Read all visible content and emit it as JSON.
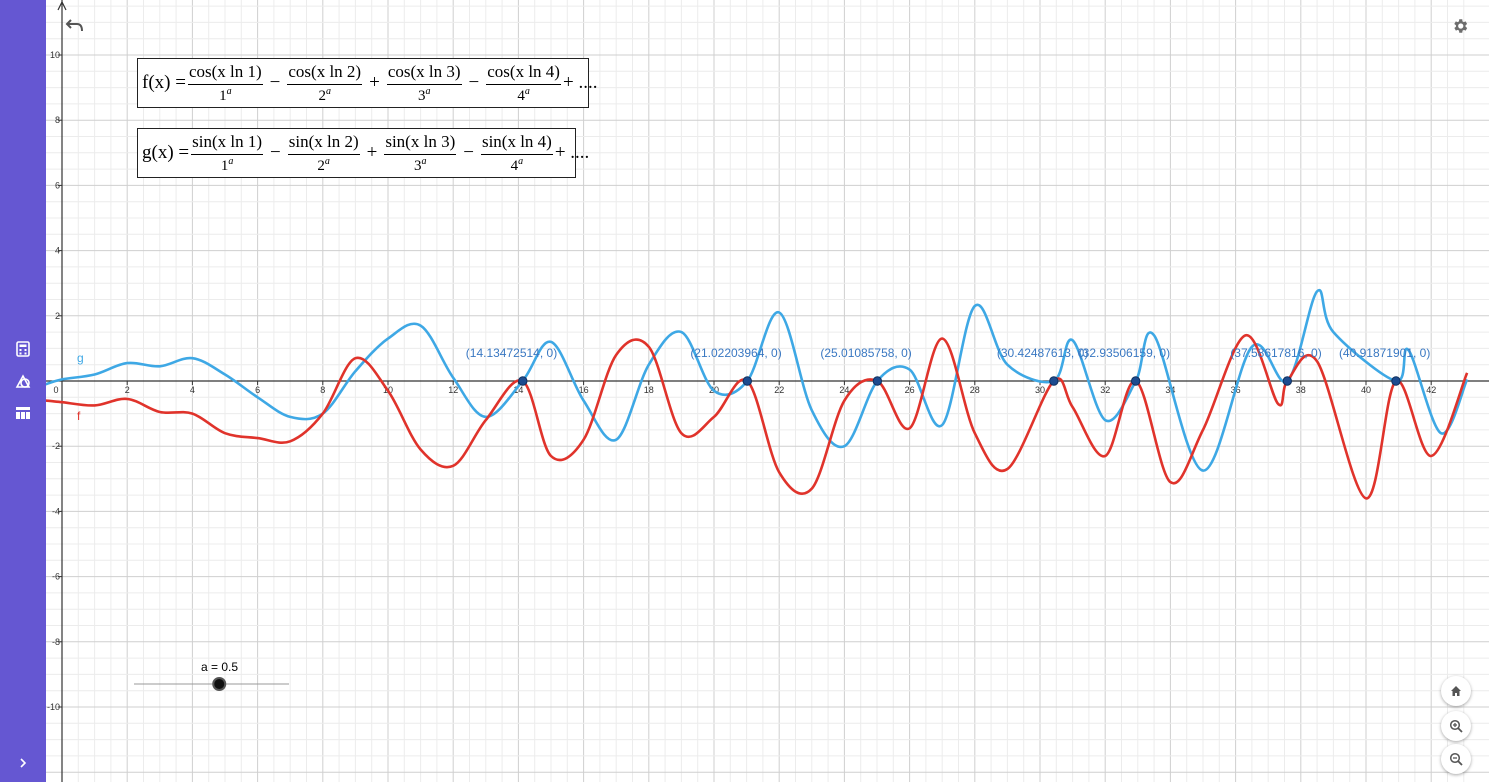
{
  "formulas": {
    "f": {
      "lhs": "f(x) =",
      "terms": [
        {
          "num": "cos(x ln 1)",
          "base": "1",
          "exp": "a"
        },
        {
          "num": "cos(x ln 2)",
          "base": "2",
          "exp": "a"
        },
        {
          "num": "cos(x ln 3)",
          "base": "3",
          "exp": "a"
        },
        {
          "num": "cos(x ln 4)",
          "base": "4",
          "exp": "a"
        }
      ],
      "ops": [
        "−",
        "+",
        "−"
      ],
      "tail": "+ ...."
    },
    "g": {
      "lhs": "g(x) =",
      "terms": [
        {
          "num": "sin(x ln 1)",
          "base": "1",
          "exp": "a"
        },
        {
          "num": "sin(x ln 2)",
          "base": "2",
          "exp": "a"
        },
        {
          "num": "sin(x ln 3)",
          "base": "3",
          "exp": "a"
        },
        {
          "num": "sin(x ln 4)",
          "base": "4",
          "exp": "a"
        }
      ],
      "ops": [
        "−",
        "+",
        "−"
      ],
      "tail": "+ ...."
    }
  },
  "slider": {
    "label": "a = 0.5",
    "value": 0.5,
    "min": -5,
    "max": 5
  },
  "toolbar": {
    "undo_icon": "undo-icon",
    "settings_icon": "gear-icon"
  },
  "sidebar": {
    "items": [
      "calculator-icon",
      "geometry-icon",
      "table-icon"
    ],
    "expand_icon": "chevron-right-icon"
  },
  "zoom_controls": [
    "home-icon",
    "zoom-in-icon",
    "zoom-out-icon"
  ],
  "colors": {
    "sidebar": "#6557d2",
    "g_curve": "#3ea8e5",
    "f_curve": "#e0332b",
    "point": "#1c4b8f",
    "label": "#3a78c2",
    "grid_major": "#cfcfcf",
    "grid_minor": "#ececec"
  },
  "chart_data": {
    "type": "line",
    "xlim": [
      -0.5,
      43.1
    ],
    "ylim": [
      -12,
      11.6
    ],
    "x_ticks": [
      2,
      4,
      6,
      8,
      10,
      12,
      14,
      16,
      18,
      20,
      22,
      24,
      26,
      28,
      30,
      32,
      34,
      36,
      38,
      40,
      42
    ],
    "x_tick_labels": [
      "2",
      "4",
      "6",
      "8",
      "10",
      "12",
      "14",
      "16",
      "18",
      "20",
      "22",
      "24",
      "26",
      "28",
      "30",
      "32",
      "34",
      "36",
      "38",
      "40",
      "42"
    ],
    "origin_label": "0",
    "y_ticks": [
      -10,
      -8,
      -6,
      -4,
      -2,
      2,
      4,
      6,
      8,
      10
    ],
    "y_tick_labels": [
      "-10",
      "-8",
      "-6",
      "-4",
      "-2",
      "2",
      "4",
      "6",
      "8",
      "10"
    ],
    "grid": true,
    "series": [
      {
        "name": "g",
        "color": "#3ea8e5",
        "x": [
          -0.5,
          0,
          1,
          2,
          3,
          4,
          5,
          6,
          7,
          8,
          9,
          10,
          11,
          12,
          13,
          14.13,
          15,
          16,
          17,
          18,
          19,
          20,
          21.02,
          22,
          23,
          24,
          25.01,
          26,
          27,
          28,
          29,
          30.42,
          31,
          32,
          32.94,
          33.5,
          35,
          36.5,
          37.59,
          38.5,
          39,
          40.92,
          41.3,
          42.3,
          43.1
        ],
        "y": [
          -0.1,
          0.05,
          0.2,
          0.55,
          0.45,
          0.7,
          0.2,
          -0.5,
          -1.1,
          -1.0,
          0.3,
          1.3,
          1.7,
          0.1,
          -1.1,
          0.0,
          1.2,
          -0.6,
          -1.8,
          0.5,
          1.5,
          -0.3,
          0.0,
          2.1,
          -0.9,
          -2.0,
          0.0,
          0.35,
          -1.35,
          2.3,
          0.5,
          0.0,
          1.25,
          -1.2,
          0.0,
          1.4,
          -2.75,
          1.05,
          0.0,
          2.75,
          1.5,
          0.0,
          0.95,
          -1.6,
          0.05
        ]
      },
      {
        "name": "f",
        "color": "#e0332b",
        "x": [
          -0.5,
          0,
          1,
          2,
          3,
          4,
          5,
          6,
          7,
          8,
          9,
          10,
          11,
          12,
          13,
          14.13,
          15,
          16,
          17,
          18,
          19,
          20,
          21.02,
          22,
          23,
          24,
          25.01,
          26,
          27,
          28,
          29,
          30.42,
          31,
          32,
          32.94,
          34,
          35,
          36.3,
          37.3,
          37.59,
          38.5,
          40,
          40.92,
          42,
          43.1
        ],
        "y": [
          -0.6,
          -0.65,
          -0.75,
          -0.55,
          -0.95,
          -1.0,
          -1.6,
          -1.75,
          -1.85,
          -1.0,
          0.7,
          -0.3,
          -2.1,
          -2.6,
          -1.2,
          0.0,
          -2.3,
          -1.8,
          0.8,
          1.05,
          -1.6,
          -1.1,
          0.0,
          -2.8,
          -3.3,
          -0.6,
          0.0,
          -1.45,
          1.3,
          -1.6,
          -2.7,
          0.0,
          -0.8,
          -2.3,
          0.0,
          -3.1,
          -1.5,
          1.4,
          -0.7,
          0.0,
          0.6,
          -3.6,
          0.0,
          -2.3,
          0.25
        ]
      }
    ],
    "points": [
      {
        "x": 14.13472514,
        "y": 0,
        "label": "(14.13472514, 0)"
      },
      {
        "x": 21.02203964,
        "y": 0,
        "label": "(21.02203964, 0)"
      },
      {
        "x": 25.01085758,
        "y": 0,
        "label": "(25.01085758, 0)"
      },
      {
        "x": 30.42487613,
        "y": 0,
        "label": "(30.42487613, 0)"
      },
      {
        "x": 32.93506159,
        "y": 0,
        "label": "(32.93506159, 0)"
      },
      {
        "x": 37.58617816,
        "y": 0,
        "label": "(37.58617816, 0)"
      },
      {
        "x": 40.91871901,
        "y": 0,
        "label": "(40.91871901, 0)"
      }
    ]
  }
}
